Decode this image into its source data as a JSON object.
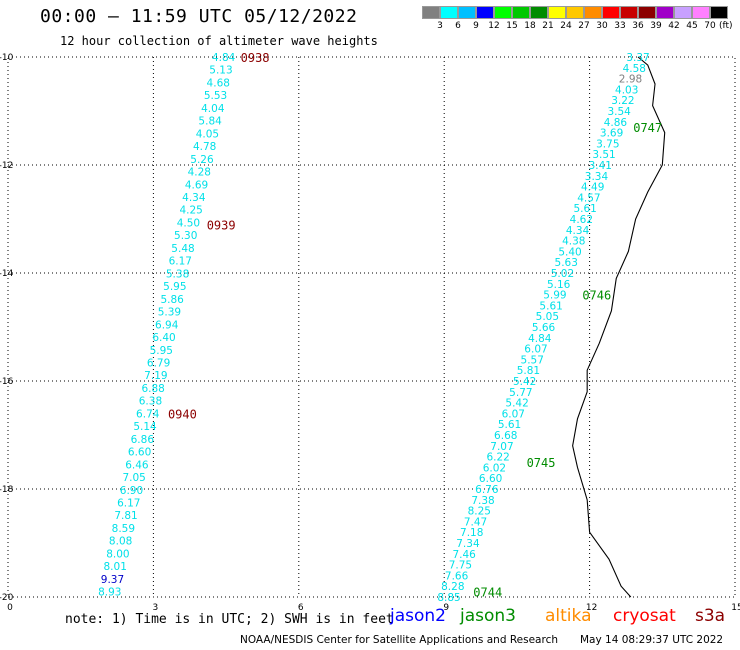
{
  "header": {
    "title": "00:00 – 11:59 UTC 05/12/2022",
    "subtitle": "12 hour collection of altimeter wave heights"
  },
  "colorbar": {
    "colors": [
      "#808080",
      "#00ffff",
      "#00c0ff",
      "#0000ff",
      "#00ff00",
      "#00c800",
      "#008c00",
      "#ffff00",
      "#ffc800",
      "#ff8c00",
      "#ff0000",
      "#c80000",
      "#8c0000",
      "#a000c8",
      "#c8a0ff",
      "#ff80ff",
      "#000000"
    ],
    "labels": [
      "3",
      "6",
      "9",
      "12",
      "15",
      "18",
      "21",
      "24",
      "27",
      "30",
      "33",
      "36",
      "39",
      "42",
      "45",
      "70"
    ],
    "unit": "(ft)"
  },
  "footer": {
    "note": "note: 1) Time is in UTC; 2) SWH is in feet",
    "legend": [
      {
        "label": "jason2",
        "color": "#0000ff"
      },
      {
        "label": "jason3",
        "color": "#008c00"
      },
      {
        "label": "altika",
        "color": "#ff8c00"
      },
      {
        "label": "cryosat",
        "color": "#ff0000"
      },
      {
        "label": "s3a",
        "color": "#8c0000"
      }
    ],
    "credit": "NOAA/NESDIS Center for Satellite Applications and Research",
    "timestamp": "May 14 08:29:37 UTC 2022"
  },
  "chart_data": {
    "type": "scatter",
    "title": "00:00 – 11:59 UTC 05/12/2022",
    "subtitle": "12 hour collection of altimeter wave heights",
    "xlim": [
      0,
      15
    ],
    "ylim": [
      -20,
      -10
    ],
    "x_ticks": [
      0,
      3,
      6,
      9,
      12,
      15
    ],
    "y_ticks": [
      -10,
      -12,
      -14,
      -16,
      -18,
      -20
    ],
    "grid": true,
    "tracks": [
      {
        "satellite": "s3a",
        "color": "#8c0000",
        "start": [
          4.45,
          -10.0
        ],
        "end": [
          2.1,
          -19.9
        ],
        "values": [
          4.84,
          5.13,
          4.68,
          5.53,
          4.04,
          5.84,
          4.05,
          4.78,
          5.26,
          4.28,
          4.69,
          4.34,
          4.25,
          4.5,
          5.3,
          5.48,
          6.17,
          5.38,
          5.95,
          5.86,
          5.39,
          6.94,
          6.4,
          5.95,
          6.79,
          7.19,
          6.88,
          6.38,
          6.74,
          5.14,
          6.86,
          6.6,
          6.46,
          7.05,
          6.9,
          6.17,
          7.81,
          8.59,
          8.08,
          8.0,
          8.01,
          9.37,
          8.93
        ],
        "time_labels": [
          {
            "text": "0938",
            "x": 4.8,
            "y": -10.0
          },
          {
            "text": "0939",
            "x": 4.1,
            "y": -13.1
          },
          {
            "text": "0940",
            "x": 3.3,
            "y": -16.6
          }
        ]
      },
      {
        "satellite": "jason3",
        "color": "#008c00",
        "start": [
          13.0,
          -10.0
        ],
        "end": [
          9.1,
          -20.0
        ],
        "values": [
          3.37,
          4.58,
          2.98,
          4.03,
          3.22,
          3.54,
          4.86,
          3.69,
          3.75,
          3.51,
          3.41,
          3.34,
          4.49,
          4.57,
          5.61,
          4.62,
          4.34,
          4.38,
          5.4,
          5.63,
          5.02,
          5.16,
          5.99,
          5.61,
          5.05,
          5.66,
          4.84,
          6.07,
          5.57,
          5.81,
          5.42,
          5.77,
          5.42,
          6.07,
          5.61,
          6.68,
          7.07,
          6.22,
          6.02,
          6.6,
          6.76,
          7.38,
          8.25,
          7.47,
          7.18,
          7.34,
          7.46,
          7.75,
          7.66,
          8.28,
          8.85
        ],
        "time_labels": [
          {
            "text": "0747",
            "x": 12.9,
            "y": -11.3
          },
          {
            "text": "0746",
            "x": 11.85,
            "y": -14.4
          },
          {
            "text": "0745",
            "x": 10.7,
            "y": -17.5
          },
          {
            "text": "0744",
            "x": 9.6,
            "y": -19.9
          }
        ]
      }
    ]
  }
}
